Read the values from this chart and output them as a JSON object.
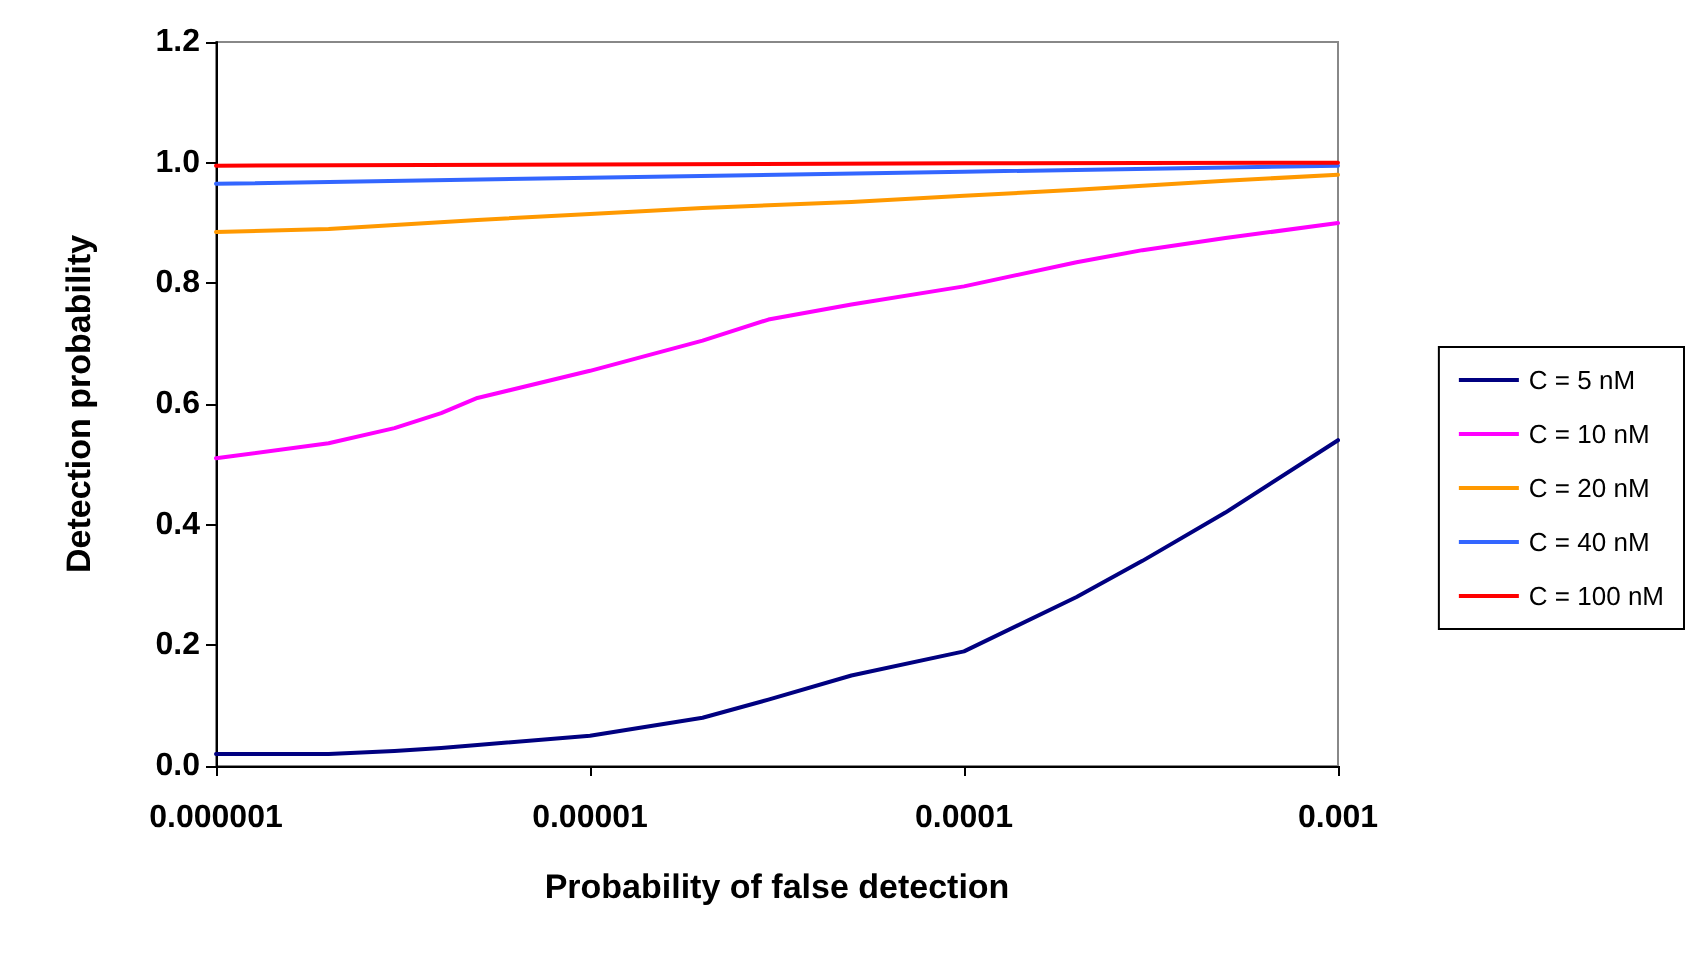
{
  "chart_data": {
    "type": "line",
    "xlabel": "Probability of false detection",
    "ylabel": "Detection probability",
    "log": "x",
    "grid": false,
    "legend": "right",
    "marker": "none",
    "line_style": "solid",
    "xlim": [
      1e-06,
      0.001
    ],
    "xticks": [
      {
        "value": 1e-06,
        "label": "0.000001"
      },
      {
        "value": 1e-05,
        "label": "0.00001"
      },
      {
        "value": 0.0001,
        "label": "0.0001"
      },
      {
        "value": 0.001,
        "label": "0.001"
      }
    ],
    "ylim": [
      0,
      1.2
    ],
    "yticks": [
      {
        "value": 0,
        "label": "0.0"
      },
      {
        "value": 0.2,
        "label": "0.2"
      },
      {
        "value": 0.4,
        "label": "0.4"
      },
      {
        "value": 0.6,
        "label": "0.6"
      },
      {
        "value": 0.8,
        "label": "0.8"
      },
      {
        "value": 1,
        "label": "1.0"
      },
      {
        "value": 1.2,
        "label": "1.2"
      }
    ],
    "series": [
      {
        "name": "C = 5 nM",
        "color": "#000080",
        "x": [
          1e-06,
          2e-06,
          3e-06,
          4e-06,
          5e-06,
          1e-05,
          2e-05,
          3e-05,
          5e-05,
          0.0001,
          0.0002,
          0.0003,
          0.0005,
          0.001
        ],
        "values": [
          0.02,
          0.02,
          0.025,
          0.03,
          0.035,
          0.05,
          0.08,
          0.11,
          0.15,
          0.19,
          0.28,
          0.34,
          0.42,
          0.54
        ]
      },
      {
        "name": "C = 10 nM",
        "color": "#ff00ff",
        "x": [
          1e-06,
          2e-06,
          3e-06,
          4e-06,
          5e-06,
          1e-05,
          2e-05,
          3e-05,
          5e-05,
          0.0001,
          0.0002,
          0.0003,
          0.0005,
          0.001
        ],
        "values": [
          0.51,
          0.535,
          0.56,
          0.585,
          0.61,
          0.655,
          0.705,
          0.74,
          0.765,
          0.795,
          0.835,
          0.855,
          0.875,
          0.9
        ]
      },
      {
        "name": "C = 20 nM",
        "color": "#ff9900",
        "x": [
          1e-06,
          2e-06,
          5e-06,
          1e-05,
          2e-05,
          5e-05,
          0.0001,
          0.0002,
          0.0005,
          0.001
        ],
        "values": [
          0.885,
          0.89,
          0.905,
          0.915,
          0.925,
          0.935,
          0.945,
          0.955,
          0.97,
          0.98
        ]
      },
      {
        "name": "C = 40 nM",
        "color": "#3366ff",
        "x": [
          1e-06,
          1e-05,
          0.0001,
          0.001
        ],
        "values": [
          0.965,
          0.975,
          0.985,
          0.995
        ]
      },
      {
        "name": "C = 100 nM",
        "color": "#ff0000",
        "x": [
          1e-06,
          1e-05,
          0.0001,
          0.001
        ],
        "values": [
          0.995,
          0.997,
          0.999,
          1.0
        ]
      }
    ]
  }
}
